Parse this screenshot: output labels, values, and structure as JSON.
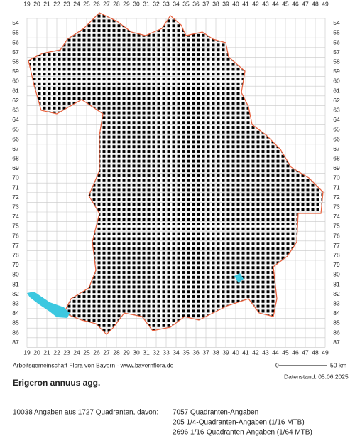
{
  "columns": [
    19,
    20,
    21,
    22,
    23,
    24,
    25,
    26,
    27,
    28,
    29,
    30,
    31,
    32,
    33,
    34,
    35,
    36,
    37,
    38,
    39,
    40,
    41,
    42,
    43,
    44,
    45,
    46,
    47,
    48,
    49
  ],
  "rows": [
    54,
    55,
    56,
    57,
    58,
    59,
    60,
    61,
    62,
    63,
    64,
    65,
    66,
    67,
    68,
    69,
    70,
    71,
    72,
    73,
    74,
    75,
    76,
    77,
    78,
    79,
    80,
    81,
    82,
    83,
    84,
    85,
    86,
    87
  ],
  "footer": {
    "source": "Arbeitsgemeinschaft Flora von Bayern - www.bayernflora.de",
    "scale_start": "0",
    "scale_end": "50 km",
    "date": "Datenstand: 05.06.2025"
  },
  "species": "Erigeron annuus agg.",
  "summary": {
    "total": "10038 Angaben aus 1727 Quadranten, davon:",
    "lines": [
      "7057 Quadranten-Angaben",
      "205 1/4-Quadranten-Angaben (1/16 MTB)",
      "2696 1/16-Quadranten-Angaben (1/64 MTB)"
    ]
  }
}
